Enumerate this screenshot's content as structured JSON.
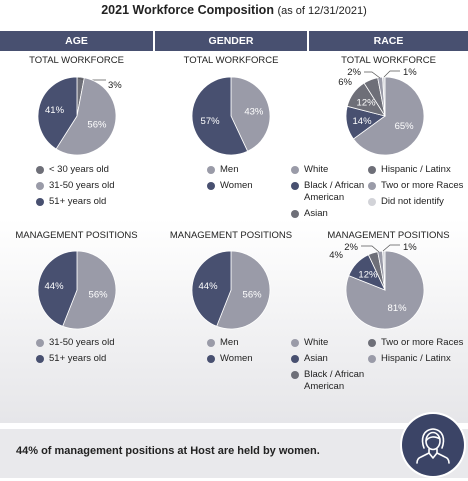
{
  "header": {
    "title": "2021 Workforce Composition",
    "subtitle": "(as of 12/31/2021)",
    "columns": [
      "AGE",
      "GENDER",
      "RACE"
    ]
  },
  "sections": {
    "total": "TOTAL WORKFORCE",
    "management": "MANAGEMENT POSITIONS"
  },
  "colors": {
    "dark": "#485070",
    "mid": "#9a9ba8",
    "light": "#d2d3d8",
    "gray": "#6e6f78",
    "header": "#485070"
  },
  "chart_data": [
    {
      "type": "pie",
      "title": "TOTAL WORKFORCE",
      "group": "AGE",
      "categories": [
        "< 30 years old",
        "31-50 years old",
        "51+ years old"
      ],
      "values": [
        3,
        56,
        41
      ],
      "labels": [
        "3%",
        "56%",
        "41%"
      ]
    },
    {
      "type": "pie",
      "title": "TOTAL WORKFORCE",
      "group": "GENDER",
      "categories": [
        "Men",
        "Women"
      ],
      "values": [
        43,
        57
      ],
      "labels": [
        "43%",
        "57%"
      ]
    },
    {
      "type": "pie",
      "title": "TOTAL WORKFORCE",
      "group": "RACE",
      "categories": [
        "White",
        "Black / African American",
        "Asian",
        "Hispanic / Latinx",
        "Two or more Races",
        "Did not identify"
      ],
      "values": [
        65,
        14,
        12,
        6,
        2,
        1
      ],
      "labels": [
        "65%",
        "14%",
        "12%",
        "6%",
        "2%",
        "1%"
      ]
    },
    {
      "type": "pie",
      "title": "MANAGEMENT POSITIONS",
      "group": "AGE",
      "categories": [
        "31-50 years old",
        "51+ years old"
      ],
      "values": [
        56,
        44
      ],
      "labels": [
        "56%",
        "44%"
      ]
    },
    {
      "type": "pie",
      "title": "MANAGEMENT POSITIONS",
      "group": "GENDER",
      "categories": [
        "Men",
        "Women"
      ],
      "values": [
        56,
        44
      ],
      "labels": [
        "56%",
        "44%"
      ]
    },
    {
      "type": "pie",
      "title": "MANAGEMENT POSITIONS",
      "group": "RACE",
      "categories": [
        "White",
        "Asian",
        "Black / African American",
        "Two or more Races",
        "Hispanic / Latinx"
      ],
      "values": [
        81,
        12,
        4,
        2,
        1
      ],
      "labels": [
        "81%",
        "12%",
        "4%",
        "2%",
        "1%"
      ]
    }
  ],
  "legends": {
    "age_total": [
      "< 30 years old",
      "31-50 years old",
      "51+ years old"
    ],
    "gender_total": [
      "Men",
      "Women"
    ],
    "race_total_left": [
      "White",
      "Black / African American",
      "Asian"
    ],
    "race_total_right": [
      "Hispanic / Latinx",
      "Two or more Races",
      "Did not identify"
    ],
    "age_mgmt": [
      "31-50 years old",
      "51+ years old"
    ],
    "gender_mgmt": [
      "Men",
      "Women"
    ],
    "race_mgmt_left": [
      "White",
      "Asian",
      "Black / African American"
    ],
    "race_mgmt_right": [
      "Two or more Races",
      "Hispanic / Latinx"
    ]
  },
  "footer": {
    "text": "44% of management positions at Host are held by women.",
    "icon": "woman-avatar-icon"
  }
}
